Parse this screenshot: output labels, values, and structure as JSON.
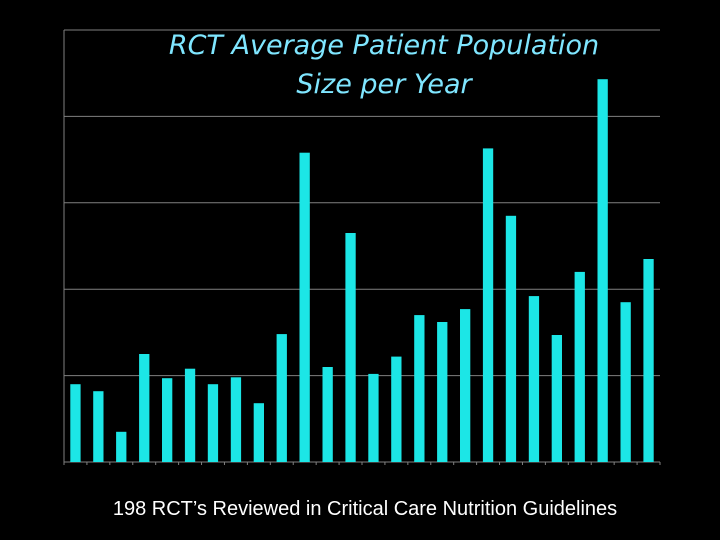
{
  "chart_data": {
    "type": "bar",
    "title": [
      "RCT Average Patient Population",
      "Size per Year"
    ],
    "xlabel": "",
    "ylabel": "",
    "ylim": [
      0,
      5
    ],
    "grid": true,
    "values": [
      0.9,
      0.82,
      0.35,
      1.25,
      0.97,
      1.08,
      0.9,
      0.98,
      0.68,
      1.48,
      3.58,
      1.1,
      2.65,
      1.02,
      1.22,
      1.7,
      1.62,
      1.77,
      3.63,
      2.85,
      1.92,
      1.47,
      2.2,
      4.43,
      1.85,
      2.35
    ],
    "series_color": "#1ce6e6"
  },
  "footer": "198 RCT’s Reviewed in Critical Care Nutrition Guidelines"
}
